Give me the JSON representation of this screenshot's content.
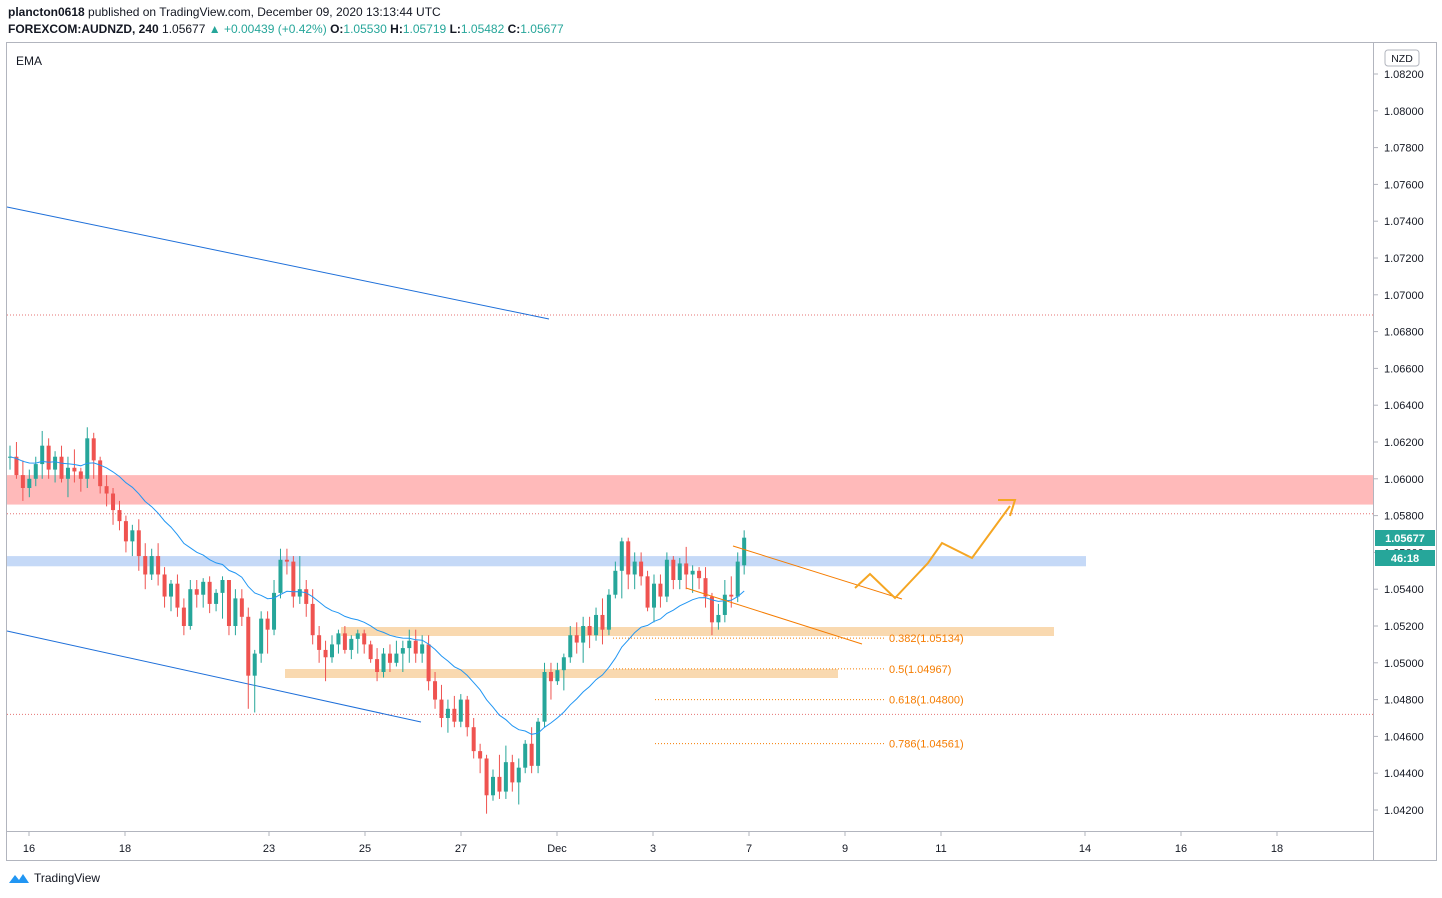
{
  "header": {
    "publisher": "plancton0618",
    "published_text": "published on TradingView.com, December 09, 2020 13:13:44 UTC",
    "symbol": "FOREXCOM:AUDNZD, 240",
    "last": "1.05677",
    "change": "▲ +0.00439 (+0.42%)",
    "o_label": "O:",
    "o": "1.05530",
    "h_label": "H:",
    "h": "1.05719",
    "l_label": "L:",
    "l": "1.05482",
    "c_label": "C:",
    "c": "1.05677"
  },
  "indicator_label": "EMA",
  "currency_badge": "NZD",
  "price_tag": "1.05677",
  "countdown_tag": "46:18",
  "footer_brand": "TradingView",
  "colors": {
    "up": "#26a69a",
    "down": "#ef5350",
    "ema": "#2196f3",
    "trendline": "#1e6fd9",
    "fib": "#f57c00",
    "resistance_zone": "#ffb3b3",
    "support_zone": "#c5d9f7",
    "fib_zone": "#f9d9b0",
    "dotted_level": "#e57373",
    "projection": "#f5a623"
  },
  "chart_data": {
    "type": "candlestick",
    "title": "FOREXCOM:AUDNZD, 240",
    "y_axis_ticks": [
      "1.08200",
      "1.08000",
      "1.07800",
      "1.07600",
      "1.07400",
      "1.07200",
      "1.07000",
      "1.06800",
      "1.06600",
      "1.06400",
      "1.06200",
      "1.06000",
      "1.05800",
      "1.05600",
      "1.05400",
      "1.05200",
      "1.05000",
      "1.04800",
      "1.04600",
      "1.04400",
      "1.04200"
    ],
    "x_axis_ticks": [
      "16",
      "18",
      "23",
      "25",
      "27",
      "Dec",
      "3",
      "7",
      "9",
      "11",
      "14",
      "16",
      "18"
    ],
    "ylim": [
      1.041,
      1.0825
    ],
    "candles": [
      [
        1.0612,
        1.0618,
        1.0605,
        1.0612
      ],
      [
        1.0612,
        1.062,
        1.06,
        1.0602
      ],
      [
        1.0602,
        1.061,
        1.0588,
        1.0595
      ],
      [
        1.0595,
        1.0605,
        1.059,
        1.06
      ],
      [
        1.06,
        1.0612,
        1.0596,
        1.0608
      ],
      [
        1.0608,
        1.0626,
        1.06,
        1.0618
      ],
      [
        1.0618,
        1.0622,
        1.06,
        1.0605
      ],
      [
        1.0605,
        1.0615,
        1.0598,
        1.0612
      ],
      [
        1.0612,
        1.0618,
        1.0598,
        1.06
      ],
      [
        1.06,
        1.0612,
        1.059,
        1.0606
      ],
      [
        1.0606,
        1.0616,
        1.0598,
        1.0604
      ],
      [
        1.0604,
        1.0606,
        1.0593,
        1.06
      ],
      [
        1.06,
        1.0628,
        1.0595,
        1.0622
      ],
      [
        1.0622,
        1.0625,
        1.06,
        1.061
      ],
      [
        1.061,
        1.0612,
        1.0592,
        1.0596
      ],
      [
        1.0596,
        1.0602,
        1.0585,
        1.0592
      ],
      [
        1.0592,
        1.0595,
        1.0575,
        1.0583
      ],
      [
        1.0583,
        1.0588,
        1.0572,
        1.0577
      ],
      [
        1.0577,
        1.058,
        1.056,
        1.0566
      ],
      [
        1.0566,
        1.0575,
        1.0558,
        1.0572
      ],
      [
        1.0572,
        1.0578,
        1.055,
        1.0558
      ],
      [
        1.0558,
        1.0565,
        1.054,
        1.0548
      ],
      [
        1.0548,
        1.0562,
        1.0545,
        1.0558
      ],
      [
        1.0558,
        1.0565,
        1.0542,
        1.0548
      ],
      [
        1.0548,
        1.0552,
        1.053,
        1.0536
      ],
      [
        1.0536,
        1.0545,
        1.0528,
        1.0543
      ],
      [
        1.0543,
        1.0548,
        1.0525,
        1.053
      ],
      [
        1.053,
        1.0535,
        1.0515,
        1.052
      ],
      [
        1.052,
        1.0545,
        1.0518,
        1.054
      ],
      [
        1.054,
        1.0545,
        1.053,
        1.0537
      ],
      [
        1.0537,
        1.0546,
        1.053,
        1.0544
      ],
      [
        1.0544,
        1.0547,
        1.0527,
        1.0532
      ],
      [
        1.0532,
        1.054,
        1.0528,
        1.0538
      ],
      [
        1.0538,
        1.0547,
        1.0524,
        1.0545
      ],
      [
        1.0545,
        1.0545,
        1.0515,
        1.052
      ],
      [
        1.052,
        1.054,
        1.0515,
        1.0535
      ],
      [
        1.0535,
        1.054,
        1.052,
        1.0525
      ],
      [
        1.0525,
        1.053,
        1.0475,
        1.0493
      ],
      [
        1.0493,
        1.0507,
        1.0473,
        1.0505
      ],
      [
        1.0505,
        1.0528,
        1.05,
        1.0524
      ],
      [
        1.0524,
        1.0528,
        1.0505,
        1.0518
      ],
      [
        1.0518,
        1.0545,
        1.0515,
        1.0538
      ],
      [
        1.0538,
        1.0562,
        1.0535,
        1.0556
      ],
      [
        1.0556,
        1.0562,
        1.0548,
        1.0555
      ],
      [
        1.0555,
        1.0558,
        1.053,
        1.0536
      ],
      [
        1.0536,
        1.0558,
        1.0532,
        1.054
      ],
      [
        1.054,
        1.0545,
        1.0525,
        1.0532
      ],
      [
        1.0532,
        1.054,
        1.051,
        1.0515
      ],
      [
        1.0515,
        1.052,
        1.05,
        1.0507
      ],
      [
        1.0507,
        1.0512,
        1.049,
        1.0503
      ],
      [
        1.0503,
        1.0515,
        1.05,
        1.051
      ],
      [
        1.051,
        1.0518,
        1.0505,
        1.0516
      ],
      [
        1.0516,
        1.052,
        1.0505,
        1.0507
      ],
      [
        1.0507,
        1.0515,
        1.0502,
        1.0513
      ],
      [
        1.0513,
        1.0518,
        1.0505,
        1.0516
      ],
      [
        1.0516,
        1.0518,
        1.0505,
        1.051
      ],
      [
        1.051,
        1.0512,
        1.05,
        1.0502
      ],
      [
        1.0502,
        1.0508,
        1.049,
        1.0495
      ],
      [
        1.0495,
        1.0508,
        1.0492,
        1.0505
      ],
      [
        1.0505,
        1.051,
        1.0495,
        1.05
      ],
      [
        1.05,
        1.0512,
        1.0498,
        1.0505
      ],
      [
        1.0505,
        1.0512,
        1.0495,
        1.0508
      ],
      [
        1.0508,
        1.0518,
        1.05,
        1.0512
      ],
      [
        1.0512,
        1.0518,
        1.05,
        1.0505
      ],
      [
        1.0505,
        1.0515,
        1.05,
        1.051
      ],
      [
        1.051,
        1.0515,
        1.0485,
        1.049
      ],
      [
        1.049,
        1.0495,
        1.0475,
        1.048
      ],
      [
        1.048,
        1.0488,
        1.0465,
        1.047
      ],
      [
        1.047,
        1.048,
        1.0462,
        1.0475
      ],
      [
        1.0475,
        1.0482,
        1.0465,
        1.0468
      ],
      [
        1.0468,
        1.0483,
        1.0465,
        1.048
      ],
      [
        1.048,
        1.0482,
        1.046,
        1.0465
      ],
      [
        1.0465,
        1.047,
        1.0448,
        1.0452
      ],
      [
        1.0452,
        1.0456,
        1.044,
        1.0448
      ],
      [
        1.0448,
        1.045,
        1.0418,
        1.0428
      ],
      [
        1.0428,
        1.0442,
        1.0425,
        1.0438
      ],
      [
        1.0438,
        1.045,
        1.0426,
        1.043
      ],
      [
        1.043,
        1.0455,
        1.0426,
        1.0446
      ],
      [
        1.0446,
        1.045,
        1.043,
        1.0435
      ],
      [
        1.0435,
        1.0448,
        1.0423,
        1.0443
      ],
      [
        1.0443,
        1.0458,
        1.044,
        1.0456
      ],
      [
        1.0456,
        1.0465,
        1.044,
        1.0444
      ],
      [
        1.0444,
        1.047,
        1.044,
        1.0468
      ],
      [
        1.0468,
        1.05,
        1.0465,
        1.0495
      ],
      [
        1.0495,
        1.05,
        1.048,
        1.049
      ],
      [
        1.049,
        1.05,
        1.0488,
        1.0496
      ],
      [
        1.0496,
        1.0505,
        1.0485,
        1.0503
      ],
      [
        1.0503,
        1.052,
        1.05,
        1.0515
      ],
      [
        1.0515,
        1.0522,
        1.0505,
        1.0511
      ],
      [
        1.0511,
        1.0525,
        1.05,
        1.052
      ],
      [
        1.052,
        1.0525,
        1.0508,
        1.0515
      ],
      [
        1.0515,
        1.053,
        1.0512,
        1.0526
      ],
      [
        1.0526,
        1.0535,
        1.051,
        1.0518
      ],
      [
        1.0518,
        1.054,
        1.0515,
        1.0537
      ],
      [
        1.0537,
        1.0555,
        1.0535,
        1.055
      ],
      [
        1.055,
        1.0568,
        1.0535,
        1.0566
      ],
      [
        1.0566,
        1.0568,
        1.054,
        1.0548
      ],
      [
        1.0548,
        1.056,
        1.054,
        1.0555
      ],
      [
        1.0555,
        1.056,
        1.0542,
        1.0547
      ],
      [
        1.0547,
        1.055,
        1.0528,
        1.053
      ],
      [
        1.053,
        1.0548,
        1.0522,
        1.0543
      ],
      [
        1.0543,
        1.0548,
        1.053,
        1.0536
      ],
      [
        1.0536,
        1.056,
        1.0533,
        1.0556
      ],
      [
        1.0556,
        1.0558,
        1.054,
        1.0545
      ],
      [
        1.0545,
        1.0557,
        1.054,
        1.0554
      ],
      [
        1.0554,
        1.0563,
        1.054,
        1.0548
      ],
      [
        1.0548,
        1.0553,
        1.0538,
        1.055
      ],
      [
        1.055,
        1.0552,
        1.054,
        1.0546
      ],
      [
        1.0546,
        1.0552,
        1.053,
        1.0536
      ],
      [
        1.0536,
        1.0538,
        1.0515,
        1.0522
      ],
      [
        1.0522,
        1.0532,
        1.0518,
        1.0526
      ],
      [
        1.0526,
        1.0545,
        1.0522,
        1.0537
      ],
      [
        1.0537,
        1.0547,
        1.053,
        1.0536
      ],
      [
        1.0536,
        1.056,
        1.0533,
        1.0555
      ],
      [
        1.0553,
        1.0572,
        1.0548,
        1.0568
      ]
    ],
    "fib_levels": [
      {
        "label": "0.382(1.05134)",
        "value": 1.05134
      },
      {
        "label": "0.5(1.04967)",
        "value": 1.04967
      },
      {
        "label": "0.618(1.04800)",
        "value": 1.048
      },
      {
        "label": "0.786(1.04561)",
        "value": 1.04561
      }
    ],
    "resistance_zone": [
      1.0586,
      1.0602
    ],
    "support_zone": [
      1.0553,
      1.0558
    ],
    "dotted_levels": [
      1.0689,
      1.0581,
      1.0472
    ],
    "grid": false
  }
}
